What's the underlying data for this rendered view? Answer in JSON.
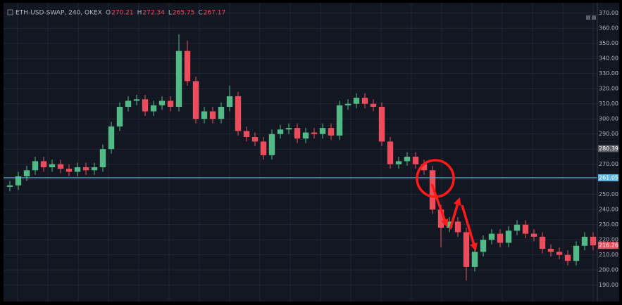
{
  "chart_data": {
    "type": "candlestick",
    "title": "ETH-USD-SWAP, 240, OKEX",
    "legend": [
      {
        "key": "O",
        "value": 270.21
      },
      {
        "key": "H",
        "value": 272.34
      },
      {
        "key": "L",
        "value": 265.75
      },
      {
        "key": "C",
        "value": 267.17
      }
    ],
    "up_color": "#53b987",
    "down_color": "#eb4d5c",
    "ylim": [
      181,
      375
    ],
    "yticks": [
      {
        "value": 190,
        "label": "190.00"
      },
      {
        "value": 200,
        "label": "200.00"
      },
      {
        "value": 210,
        "label": "210.00"
      },
      {
        "value": 220,
        "label": "220.00"
      },
      {
        "value": 230,
        "label": "230.00"
      },
      {
        "value": 240,
        "label": "240.00"
      },
      {
        "value": 250,
        "label": "250.00"
      },
      {
        "value": 260,
        "label": "260.00"
      },
      {
        "value": 270,
        "label": "270.00"
      },
      {
        "value": 280,
        "label": "280.00"
      },
      {
        "value": 290,
        "label": "290.00"
      },
      {
        "value": 300,
        "label": "300.00"
      },
      {
        "value": 310,
        "label": "310.00"
      },
      {
        "value": 320,
        "label": "320.00"
      },
      {
        "value": 330,
        "label": "330.00"
      },
      {
        "value": 340,
        "label": "340.00"
      },
      {
        "value": 350,
        "label": "350.00"
      },
      {
        "value": 360,
        "label": "360.00"
      },
      {
        "value": 370,
        "label": "370.00"
      }
    ],
    "grid": true,
    "markers": [
      {
        "value": 280.39,
        "color": "#5d606b",
        "line": false
      },
      {
        "value": 261.05,
        "color": "#5fb4d9",
        "line": true
      },
      {
        "value": 216.26,
        "color": "#eb4d5c",
        "line": false
      }
    ],
    "open": [
      255,
      256,
      262,
      266,
      272,
      268,
      270,
      267,
      265,
      268,
      266,
      268,
      280,
      295,
      308,
      312,
      313,
      305,
      309,
      312,
      308,
      345,
      325,
      300,
      305,
      300,
      308,
      315,
      292,
      288,
      285,
      276,
      290,
      293,
      294,
      287,
      291,
      290,
      294,
      289,
      309,
      310,
      314,
      310,
      308,
      285,
      270,
      272,
      275,
      270,
      266,
      240,
      228,
      232,
      225,
      202,
      212,
      220,
      224,
      218,
      226,
      230,
      224,
      222,
      214,
      212,
      210,
      206,
      216,
      222
    ],
    "high": [
      259,
      265,
      269,
      275,
      275,
      273,
      273,
      270,
      271,
      271,
      271,
      283,
      298,
      311,
      315,
      316,
      316,
      312,
      315,
      315,
      356,
      352,
      328,
      308,
      308,
      311,
      322,
      318,
      295,
      291,
      288,
      293,
      296,
      297,
      297,
      294,
      294,
      297,
      297,
      312,
      313,
      317,
      317,
      313,
      311,
      288,
      275,
      278,
      278,
      273,
      269,
      243,
      235,
      235,
      228,
      215,
      223,
      227,
      227,
      229,
      233,
      233,
      227,
      225,
      217,
      215,
      213,
      219,
      225,
      225
    ],
    "low": [
      252,
      253,
      259,
      263,
      265,
      265,
      264,
      262,
      262,
      263,
      263,
      265,
      277,
      292,
      305,
      309,
      302,
      302,
      306,
      305,
      305,
      322,
      297,
      297,
      297,
      297,
      305,
      289,
      285,
      282,
      273,
      273,
      287,
      290,
      284,
      284,
      287,
      287,
      286,
      286,
      306,
      307,
      307,
      305,
      282,
      267,
      267,
      269,
      267,
      263,
      237,
      215,
      225,
      222,
      193,
      199,
      209,
      217,
      215,
      215,
      223,
      221,
      219,
      211,
      209,
      207,
      203,
      203,
      213,
      213
    ],
    "close": [
      256,
      262,
      266,
      272,
      268,
      270,
      267,
      265,
      268,
      266,
      268,
      280,
      295,
      308,
      312,
      313,
      305,
      309,
      312,
      308,
      345,
      325,
      300,
      305,
      300,
      308,
      315,
      292,
      288,
      285,
      276,
      290,
      293,
      294,
      287,
      291,
      290,
      294,
      289,
      309,
      310,
      314,
      310,
      308,
      285,
      270,
      272,
      275,
      270,
      266,
      240,
      228,
      232,
      225,
      202,
      212,
      220,
      224,
      218,
      226,
      230,
      224,
      222,
      214,
      212,
      210,
      206,
      216,
      222,
      216.26
    ]
  }
}
